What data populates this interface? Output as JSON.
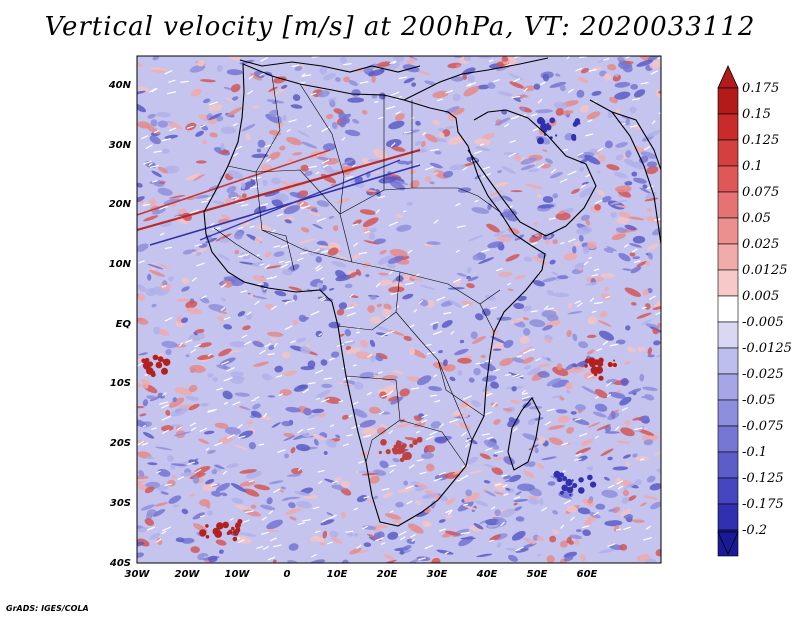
{
  "title": "Vertical velocity [m/s] at 200hPa, VT: 2020033112",
  "credit": "GrADS: IGES/COLA",
  "map": {
    "region": "Africa",
    "lon_range": [
      -30,
      75
    ],
    "lat_range": [
      -40,
      45
    ],
    "lon_ticks": [
      "30W",
      "20W",
      "10W",
      "0",
      "10E",
      "20E",
      "30E",
      "40E",
      "50E",
      "60E"
    ],
    "lat_ticks": [
      "40N",
      "30N",
      "20N",
      "10N",
      "EQ",
      "10S",
      "20S",
      "30S",
      "40S"
    ]
  },
  "colorbar": {
    "labels": [
      "0.175",
      "0.15",
      "0.125",
      "0.1",
      "0.075",
      "0.05",
      "0.025",
      "0.0125",
      "0.005",
      "-0.005",
      "-0.0125",
      "-0.025",
      "-0.05",
      "-0.075",
      "-0.1",
      "-0.125",
      "-0.175",
      "-0.2"
    ],
    "colors": [
      "#b31b1b",
      "#c92a2a",
      "#d44040",
      "#de5858",
      "#e57373",
      "#ec8f8f",
      "#f2abab",
      "#f8c9c9",
      "#ffffff",
      "#d8d8f3",
      "#bdbdee",
      "#a6a6e6",
      "#8e8ede",
      "#7676d4",
      "#5d5dca",
      "#4646c0",
      "#3030b0",
      "#1a1a99"
    ]
  },
  "colors": {
    "positive": "#d03a3a",
    "negative": "#4444c4",
    "coast": "#000000"
  }
}
